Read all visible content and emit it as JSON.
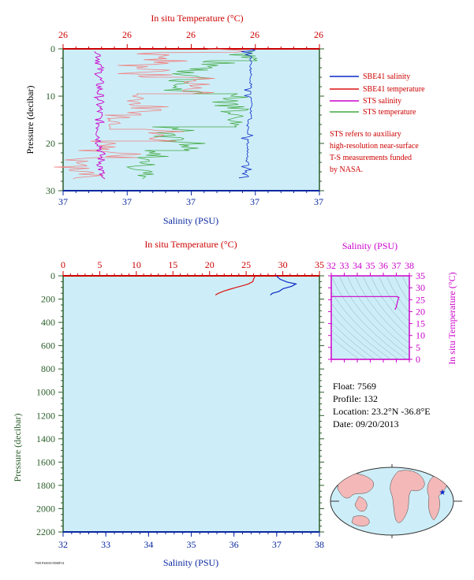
{
  "chart_data": [
    {
      "type": "line",
      "panel": "upper",
      "top_axis": {
        "label": "In situ Temperature (°C)",
        "ticks": [
          "26",
          "26",
          "26",
          "26",
          "26"
        ]
      },
      "bottom_axis": {
        "label": "Salinity (PSU)",
        "ticks": [
          "37",
          "37",
          "37",
          "37",
          "37"
        ]
      },
      "left_axis": {
        "label": "Pressure (decibar)",
        "ticks": [
          "0",
          "10",
          "20",
          "30"
        ],
        "range": [
          0,
          30
        ],
        "inverted": true
      },
      "legend": [
        {
          "name": "SBE41 salinity",
          "color": "#0a28c8"
        },
        {
          "name": "SBE41 temperature",
          "color": "#dd1111"
        },
        {
          "name": "STS salinity",
          "color": "#cc00cc"
        },
        {
          "name": "STS temperature",
          "color": "#44aa44"
        }
      ],
      "note": [
        "STS refers to auxiliary",
        "high-resolution near-surface",
        "T-S measurements funded",
        "by NASA."
      ],
      "legend_placement": "right",
      "grid": false
    },
    {
      "type": "line",
      "panel": "lower",
      "top_axis": {
        "label": "In situ Temperature (°C)",
        "ticks": [
          0,
          5,
          10,
          15,
          20,
          25,
          30,
          35
        ],
        "range": [
          0,
          35
        ]
      },
      "bottom_axis": {
        "label": "Salinity (PSU)",
        "ticks": [
          32,
          33,
          34,
          35,
          36,
          37,
          38
        ],
        "range": [
          32,
          38
        ]
      },
      "left_axis": {
        "label": "Pressure (decibar)",
        "ticks": [
          0,
          200,
          400,
          600,
          800,
          1000,
          1200,
          1400,
          1600,
          1800,
          2000,
          2200
        ],
        "range": [
          0,
          2200
        ],
        "inverted": true
      },
      "series": [
        {
          "name": "SBE41 temperature",
          "color": "#dd1111",
          "axis": "temperature",
          "points": [
            [
              26.2,
              0
            ],
            [
              26.2,
              5
            ],
            [
              26.1,
              15
            ],
            [
              26.0,
              30
            ],
            [
              25.9,
              50
            ],
            [
              25.3,
              70
            ],
            [
              24.5,
              85
            ],
            [
              23.6,
              100
            ],
            [
              22.8,
              115
            ],
            [
              22.0,
              130
            ],
            [
              21.2,
              150
            ],
            [
              20.8,
              165
            ]
          ]
        },
        {
          "name": "SBE41 salinity",
          "color": "#0a28c8",
          "axis": "salinity",
          "points": [
            [
              37.0,
              0
            ],
            [
              37.02,
              10
            ],
            [
              37.08,
              30
            ],
            [
              37.25,
              55
            ],
            [
              37.45,
              70
            ],
            [
              37.35,
              90
            ],
            [
              37.15,
              110
            ],
            [
              37.05,
              135
            ],
            [
              36.9,
              150
            ],
            [
              36.85,
              165
            ]
          ]
        }
      ],
      "grid": false
    },
    {
      "type": "scatter",
      "panel": "ts-diagram",
      "x_axis": {
        "label": "Salinity (PSU)",
        "ticks": [
          32,
          33,
          34,
          35,
          36,
          37,
          38
        ],
        "range": [
          32,
          38
        ]
      },
      "y_axis": {
        "label": "In situ Temperature (°C)",
        "ticks": [
          0,
          5,
          10,
          15,
          20,
          25,
          30,
          35
        ],
        "range": [
          0,
          35
        ]
      },
      "trace": [
        [
          32.0,
          26.3
        ],
        [
          37.0,
          26.3
        ],
        [
          37.2,
          26.0
        ],
        [
          37.1,
          24.5
        ],
        [
          37.0,
          22.0
        ],
        [
          36.9,
          20.8
        ]
      ]
    }
  ],
  "float_info": {
    "float": "Float: 7569",
    "profile": "Profile: 132",
    "location": "Location: 23.2°N -36.8°E",
    "date": "Date: 09/20/2013"
  },
  "colors": {
    "plot_bg": "#cdeef8",
    "temperature_axis": "#cc0000",
    "salinity_axis": "#0a28a0",
    "pressure_axis": "#2a5d2a",
    "ts_axis": "#cc00cc",
    "land": "#f4b8b8",
    "ocean": "#cdeef8"
  },
  "footer": "7569 FS0018 09SEP14"
}
